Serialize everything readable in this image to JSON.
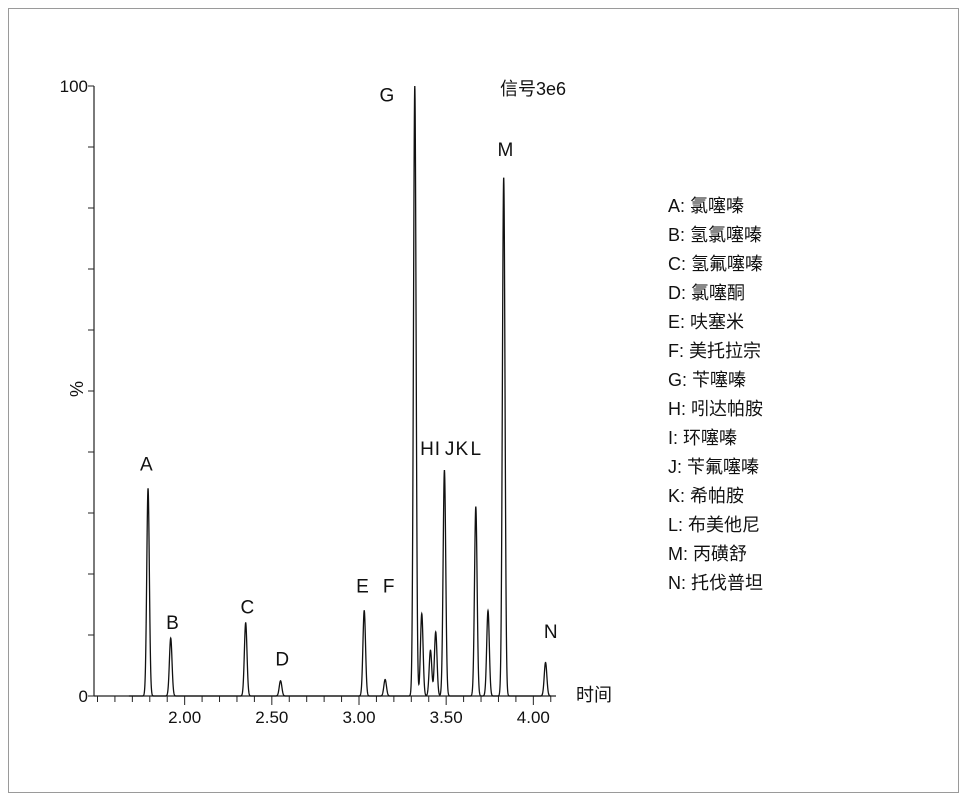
{
  "chart_data": {
    "type": "line",
    "title": "",
    "signal_label": "信号3e6",
    "xlabel": "时间",
    "ylabel": "%",
    "xlim": [
      1.48,
      4.13
    ],
    "ylim": [
      0,
      100
    ],
    "x_ticks": [
      2.0,
      2.5,
      3.0,
      3.5,
      4.0
    ],
    "x_tick_labels": [
      "2.00",
      "2.50",
      "3.00",
      "3.50",
      "4.00"
    ],
    "y_tick_labels": [
      "0",
      "100"
    ],
    "series": [
      {
        "peaks": [
          {
            "label": "A",
            "x": 1.79,
            "y": 34
          },
          {
            "label": "B",
            "x": 1.92,
            "y": 9.5
          },
          {
            "label": "C",
            "x": 2.35,
            "y": 12
          },
          {
            "label": "D",
            "x": 2.55,
            "y": 2.5
          },
          {
            "label": "E",
            "x": 3.03,
            "y": 14
          },
          {
            "label": "F",
            "x": 3.15,
            "y": 2.7
          },
          {
            "label": "G",
            "x": 3.32,
            "y": 100
          },
          {
            "label": "H",
            "x": 3.36,
            "y": 13.5
          },
          {
            "label": "",
            "x": 3.41,
            "y": 7.5
          },
          {
            "label": "I",
            "x": 3.44,
            "y": 10.5
          },
          {
            "label": "J",
            "x": 3.49,
            "y": 37
          },
          {
            "label": "K",
            "x": 3.67,
            "y": 31
          },
          {
            "label": "",
            "x": 3.74,
            "y": 14
          },
          {
            "label": "L",
            "x": 3.83,
            "y": 85
          },
          {
            "label": "N",
            "x": 4.07,
            "y": 5.5
          }
        ]
      }
    ],
    "peak_labels": [
      {
        "text": "A",
        "x": 1.78,
        "y": 37
      },
      {
        "text": "B",
        "x": 1.93,
        "y": 11
      },
      {
        "text": "C",
        "x": 2.36,
        "y": 13.5
      },
      {
        "text": "D",
        "x": 2.56,
        "y": 5
      },
      {
        "text": "E",
        "x": 3.02,
        "y": 17
      },
      {
        "text": "F",
        "x": 3.17,
        "y": 17
      },
      {
        "text": "G",
        "x": 3.16,
        "y": 97.5
      },
      {
        "text": "H",
        "x": 3.39,
        "y": 39.5
      },
      {
        "text": "I",
        "x": 3.45,
        "y": 39.5
      },
      {
        "text": "J",
        "x": 3.52,
        "y": 39.5
      },
      {
        "text": "K",
        "x": 3.59,
        "y": 39.5
      },
      {
        "text": "L",
        "x": 3.67,
        "y": 39.5
      },
      {
        "text": "M",
        "x": 3.84,
        "y": 88.5
      },
      {
        "text": "N",
        "x": 4.1,
        "y": 9.5
      }
    ],
    "legend_position": "right",
    "legend": [
      "A: 氯噻嗪",
      "B: 氢氯噻嗪",
      "C: 氢氟噻嗪",
      "D: 氯噻酮",
      "E: 呋塞米",
      "F:  美托拉宗",
      "G: 苄噻嗪",
      "H: 吲达帕胺",
      "I:  环噻嗪",
      "J: 苄氟噻嗪",
      "K: 希帕胺",
      "L: 布美他尼",
      "M:  丙磺舒",
      "N: 托伐普坦"
    ]
  }
}
